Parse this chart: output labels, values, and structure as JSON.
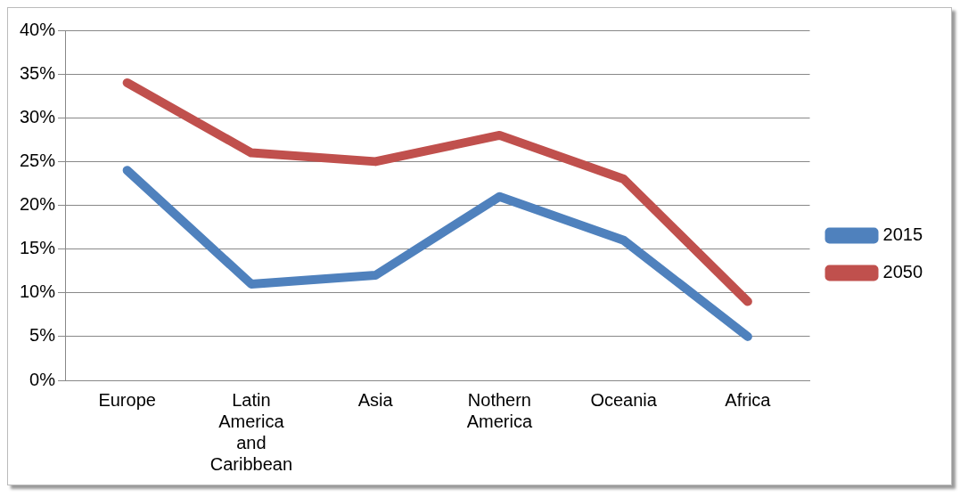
{
  "chart_data": {
    "type": "line",
    "categories": [
      "Europe",
      "Latin America and Caribbean",
      "Asia",
      "Nothern America",
      "Oceania",
      "Africa"
    ],
    "series": [
      {
        "name": "2015",
        "color": "#4f81bd",
        "values": [
          24,
          11,
          12,
          21,
          16,
          5
        ]
      },
      {
        "name": "2050",
        "color": "#c0504d",
        "values": [
          34,
          26,
          25,
          28,
          23,
          9
        ]
      }
    ],
    "ylim": [
      0,
      40
    ],
    "yticks": [
      {
        "value": 0,
        "label": "0%"
      },
      {
        "value": 5,
        "label": "5%"
      },
      {
        "value": 10,
        "label": "10%"
      },
      {
        "value": 15,
        "label": "15%"
      },
      {
        "value": 20,
        "label": "20%"
      },
      {
        "value": 25,
        "label": "25%"
      },
      {
        "value": 30,
        "label": "30%"
      },
      {
        "value": 35,
        "label": "35%"
      },
      {
        "value": 40,
        "label": "40%"
      }
    ],
    "grid": "y",
    "legend": "right",
    "marker": "none",
    "line_style": "solid"
  }
}
